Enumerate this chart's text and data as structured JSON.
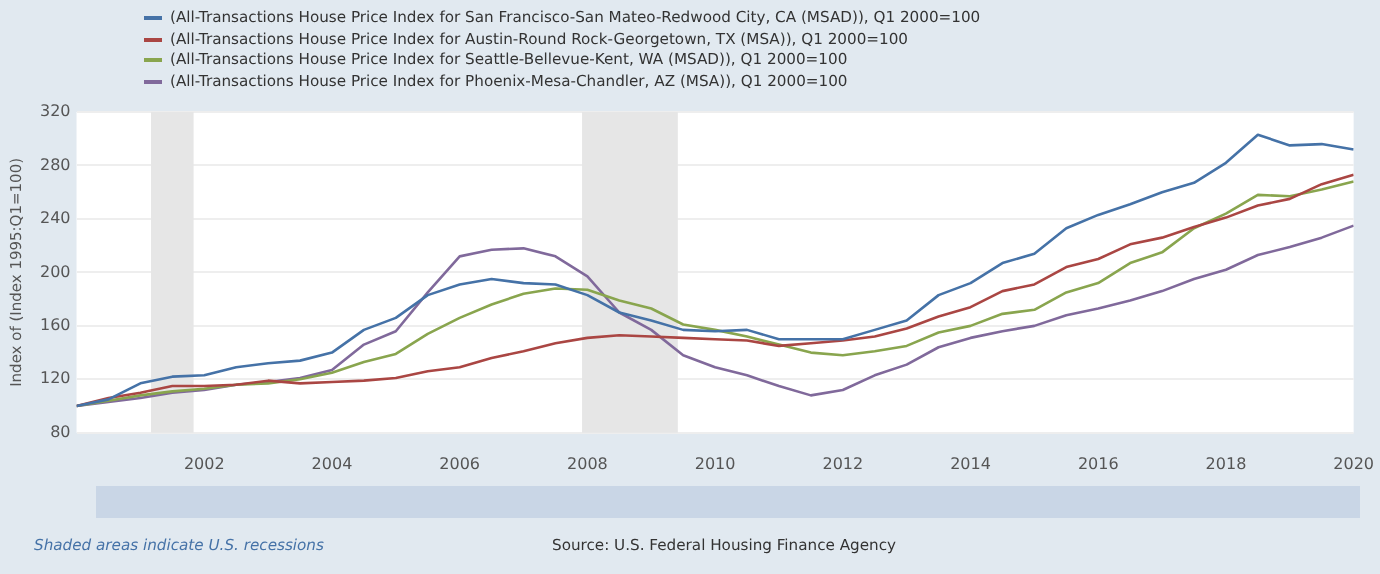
{
  "chart_data": {
    "type": "line",
    "ylabel": "Index of (Index 1995:Q1=100)",
    "x": [
      "2000-01",
      "2000-07",
      "2001-01",
      "2001-07",
      "2002-01",
      "2002-07",
      "2003-01",
      "2003-07",
      "2004-01",
      "2004-07",
      "2005-01",
      "2005-07",
      "2006-01",
      "2006-07",
      "2007-01",
      "2007-07",
      "2008-01",
      "2008-07",
      "2009-01",
      "2009-07",
      "2010-01",
      "2010-07",
      "2011-01",
      "2011-07",
      "2012-01",
      "2012-07",
      "2013-01",
      "2013-07",
      "2014-01",
      "2014-07",
      "2015-01",
      "2015-07",
      "2016-01",
      "2016-07",
      "2017-01",
      "2017-07",
      "2018-01",
      "2018-07",
      "2019-01",
      "2019-07",
      "2020-01"
    ],
    "series": [
      {
        "name": "(All-Transactions House Price Index for San Francisco-San Mateo-Redwood City, CA (MSAD)), Q1 2000=100",
        "color": "#4572a7",
        "values": [
          100,
          105,
          117,
          122,
          123,
          129,
          132,
          134,
          140,
          157,
          166,
          183,
          191,
          195,
          192,
          191,
          183,
          170,
          164,
          157,
          156,
          157,
          150,
          150,
          150,
          157,
          164,
          183,
          192,
          207,
          214,
          233,
          243,
          251,
          260,
          267,
          282,
          303,
          295,
          296,
          292
        ]
      },
      {
        "name": "(All-Transactions House Price Index for Austin-Round Rock-Georgetown, TX (MSA)), Q1 2000=100",
        "color": "#aa4643",
        "values": [
          100,
          106,
          110,
          115,
          115,
          116,
          119,
          117,
          118,
          119,
          121,
          126,
          129,
          136,
          141,
          147,
          151,
          153,
          152,
          151,
          150,
          149,
          145,
          147,
          149,
          152,
          158,
          167,
          174,
          186,
          191,
          204,
          210,
          221,
          226,
          234,
          241,
          250,
          255,
          266,
          273
        ]
      },
      {
        "name": "(All-Transactions House Price Index for Seattle-Bellevue-Kent, WA (MSAD)), Q1 2000=100",
        "color": "#89a54e",
        "values": [
          100,
          104,
          108,
          111,
          113,
          116,
          117,
          120,
          125,
          133,
          139,
          154,
          166,
          176,
          184,
          188,
          187,
          179,
          173,
          161,
          157,
          152,
          146,
          140,
          138,
          141,
          145,
          155,
          160,
          169,
          172,
          185,
          192,
          207,
          215,
          233,
          244,
          258,
          257,
          262,
          268
        ]
      },
      {
        "name": "(All-Transactions House Price Index for Phoenix-Mesa-Chandler, AZ (MSA)), Q1 2000=100",
        "color": "#80699b",
        "values": [
          100,
          103,
          106,
          110,
          112,
          116,
          118,
          121,
          127,
          146,
          156,
          185,
          212,
          217,
          218,
          212,
          197,
          170,
          157,
          138,
          129,
          123,
          115,
          108,
          112,
          123,
          131,
          144,
          151,
          156,
          160,
          168,
          173,
          179,
          186,
          195,
          202,
          213,
          219,
          226,
          235
        ]
      }
    ],
    "xlim": [
      "2000-01",
      "2020-01"
    ],
    "xticks": [
      "2002",
      "2004",
      "2006",
      "2008",
      "2010",
      "2012",
      "2014",
      "2016",
      "2018",
      "2020"
    ],
    "ylim": [
      80,
      320
    ],
    "yticks": [
      80,
      120,
      160,
      200,
      240,
      280,
      320
    ],
    "bands": [
      {
        "axis": "x",
        "from": "2001-03",
        "to": "2001-11",
        "color": "#e6e6e6"
      },
      {
        "axis": "x",
        "from": "2007-12",
        "to": "2009-06",
        "color": "#e6e6e6"
      }
    ],
    "annotations": [
      "Shaded areas indicate U.S. recessions",
      "Source: U.S. Federal Housing Finance Agency"
    ],
    "grid": "y",
    "legend": "top left",
    "marker": "none",
    "line_style": "solid"
  }
}
